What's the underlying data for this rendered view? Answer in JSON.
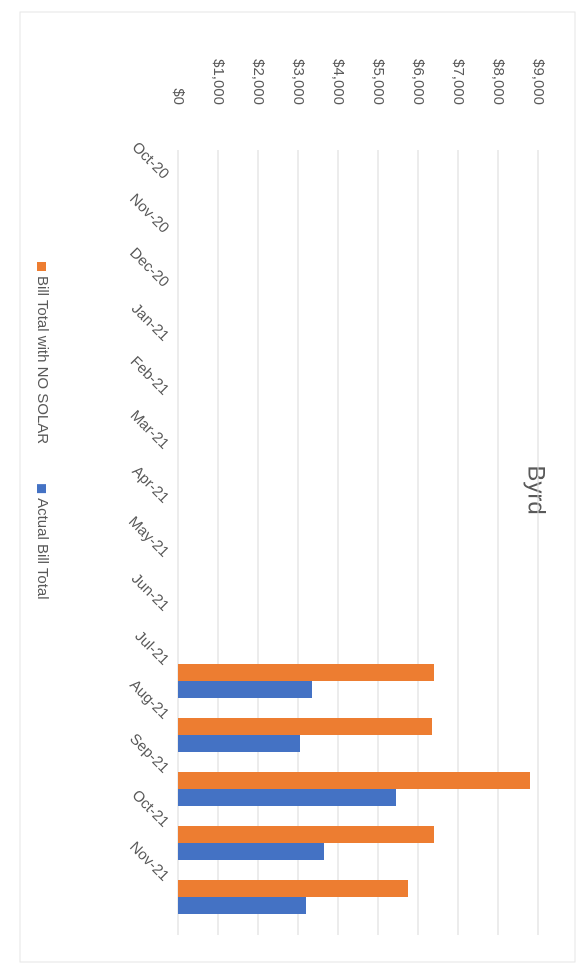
{
  "chart_data": {
    "type": "bar",
    "title": "Byrd",
    "categories": [
      "Oct-20",
      "Nov-20",
      "Dec-20",
      "Jan-21",
      "Feb-21",
      "Mar-21",
      "Apr-21",
      "May-21",
      "Jun-21",
      "Jul-21",
      "Aug-21",
      "Sep-21",
      "Oct-21",
      "Nov-21"
    ],
    "series": [
      {
        "name": "Bill Total with NO SOLAR",
        "color": "#ed7d31",
        "values": [
          null,
          null,
          null,
          null,
          null,
          null,
          null,
          null,
          null,
          6400,
          6350,
          8800,
          6400,
          5750
        ]
      },
      {
        "name": "Actual Bill Total",
        "color": "#4472c4",
        "values": [
          null,
          null,
          null,
          null,
          null,
          null,
          null,
          null,
          null,
          3350,
          3050,
          5450,
          3650,
          3200
        ]
      }
    ],
    "ylim": [
      0,
      9000
    ],
    "yticks": [
      {
        "value": 0,
        "label": "$0"
      },
      {
        "value": 1000,
        "label": "$1,000"
      },
      {
        "value": 2000,
        "label": "$2,000"
      },
      {
        "value": 3000,
        "label": "$3,000"
      },
      {
        "value": 4000,
        "label": "$4,000"
      },
      {
        "value": 5000,
        "label": "$5,000"
      },
      {
        "value": 6000,
        "label": "$6,000"
      },
      {
        "value": 7000,
        "label": "$7,000"
      },
      {
        "value": 8000,
        "label": "$8,000"
      },
      {
        "value": 9000,
        "label": "$9,000"
      }
    ],
    "grid": true,
    "legend": "bottom"
  }
}
